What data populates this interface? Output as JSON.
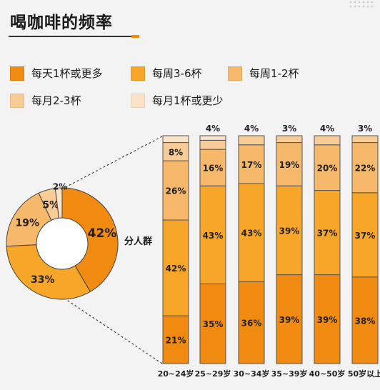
{
  "page": {
    "title": "喝咖啡的频率",
    "group_label": "分人群"
  },
  "colors": {
    "daily": "#f08a10",
    "weekly_3_6": "#f8a62a",
    "weekly_1_2": "#f6b86a",
    "monthly_2_3": "#f8cc97",
    "monthly_1_or_less": "#fbe3c8",
    "bar_border": "#555555",
    "donut_hole": "#ffffff"
  },
  "legend": [
    {
      "label": "每天1杯或更多",
      "color_key": "daily"
    },
    {
      "label": "每周3-6杯",
      "color_key": "weekly_3_6"
    },
    {
      "label": "每周1-2杯",
      "color_key": "weekly_1_2"
    },
    {
      "label": "每月2-3杯",
      "color_key": "monthly_2_3"
    },
    {
      "label": "每月1杯或更少",
      "color_key": "monthly_1_or_less"
    }
  ],
  "chart_data": [
    {
      "type": "pie",
      "title": "",
      "slices": [
        {
          "label": "每天1杯或更多",
          "value": 42,
          "display": "42%"
        },
        {
          "label": "每周3-6杯",
          "value": 33,
          "display": "33%"
        },
        {
          "label": "每周1-2杯",
          "value": 19,
          "display": "19%"
        },
        {
          "label": "每月2-3杯",
          "value": 5,
          "display": "5%"
        },
        {
          "label": "每月1杯或更少",
          "value": 2,
          "display": "2%"
        }
      ]
    },
    {
      "type": "bar",
      "stacked": true,
      "categories": [
        "20~24岁",
        "25~29岁",
        "30~34岁",
        "35~39岁",
        "40~50岁",
        "50岁以上"
      ],
      "series": [
        {
          "name": "每天1杯或更多",
          "color_key": "daily",
          "values": [
            21,
            35,
            36,
            39,
            39,
            38
          ],
          "labels": [
            "21%",
            "35%",
            "36%",
            "39%",
            "39%",
            "38%"
          ]
        },
        {
          "name": "每周3-6杯",
          "color_key": "weekly_3_6",
          "values": [
            42,
            43,
            43,
            39,
            37,
            37
          ],
          "labels": [
            "42%",
            "43%",
            "43%",
            "39%",
            "37%",
            "37%"
          ]
        },
        {
          "name": "每周1-2杯",
          "color_key": "weekly_1_2",
          "values": [
            26,
            16,
            17,
            19,
            20,
            22
          ],
          "labels": [
            "26%",
            "16%",
            "17%",
            "19%",
            "20%",
            "22%"
          ]
        },
        {
          "name": "每月2-3杯",
          "color_key": "monthly_2_3",
          "values": [
            8,
            4,
            4,
            3,
            4,
            3
          ],
          "labels": [
            "8%",
            "",
            "",
            "",
            "",
            ""
          ]
        }
      ],
      "top_labels": [
        "",
        "4%",
        "4%",
        "3%",
        "4%",
        "3%"
      ],
      "ylim": [
        0,
        100
      ]
    }
  ]
}
